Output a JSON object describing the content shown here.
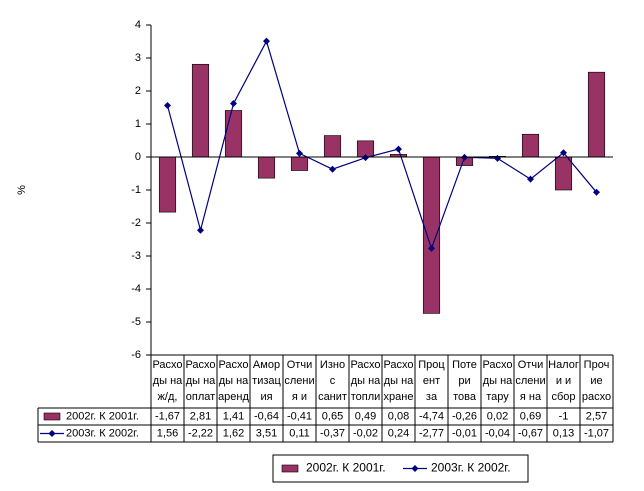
{
  "chart_data": {
    "type": "bar-line",
    "y_label": "%",
    "categories": [
      [
        "Расхо",
        "ды на",
        "ж/д,"
      ],
      [
        "Расхо",
        "ды на",
        "оплат"
      ],
      [
        "Расхо",
        "ды на",
        "аренд"
      ],
      [
        "Амор",
        "тизац",
        "ия"
      ],
      [
        "Отчи",
        "слени",
        "я и"
      ],
      [
        "Изно",
        "с",
        "санит"
      ],
      [
        "Расхо",
        "ды на",
        "топли"
      ],
      [
        "Расхо",
        "ды на",
        "хране"
      ],
      [
        "Проц",
        "ент",
        "за"
      ],
      [
        "Поте",
        "ри",
        "това"
      ],
      [
        "Расхо",
        "ды на",
        "тару"
      ],
      [
        "Отчи",
        "слени",
        "я на"
      ],
      [
        "Налог",
        "и и",
        "сбор"
      ],
      [
        "Проч",
        "ие",
        "расхо"
      ]
    ],
    "series": [
      {
        "name": "2002г. К 2001г.",
        "type": "bar",
        "color": "#993366",
        "values": [
          -1.67,
          2.81,
          1.41,
          -0.64,
          -0.41,
          0.65,
          0.49,
          0.08,
          -4.74,
          -0.26,
          0.02,
          0.69,
          -1,
          2.57
        ],
        "value_labels": [
          "-1,67",
          "2,81",
          "1,41",
          "-0,64",
          "-0,41",
          "0,65",
          "0,49",
          "0,08",
          "-4,74",
          "-0,26",
          "0,02",
          "0,69",
          "-1",
          "2,57"
        ]
      },
      {
        "name": "2003г. К 2002г.",
        "type": "line",
        "color": "#000080",
        "values": [
          1.56,
          -2.22,
          1.62,
          3.51,
          0.11,
          -0.37,
          -0.02,
          0.24,
          -2.77,
          -0.01,
          -0.04,
          -0.67,
          0.13,
          -1.07
        ],
        "value_labels": [
          "1,56",
          "-2,22",
          "1,62",
          "3,51",
          "0,11",
          "-0,37",
          "-0,02",
          "0,24",
          "-2,77",
          "-0,01",
          "-0,04",
          "-0,67",
          "0,13",
          "-1,07"
        ]
      }
    ],
    "ylim": [
      -6,
      4
    ],
    "yticks": [
      -6,
      -5,
      -4,
      -3,
      -2,
      -1,
      0,
      1,
      2,
      3,
      4
    ],
    "grid": false,
    "legend": "bottom"
  }
}
